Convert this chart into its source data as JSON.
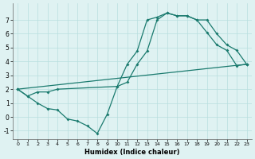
{
  "xlabel": "Humidex (Indice chaleur)",
  "bg_color": "#dff2f2",
  "line_color": "#1a7a6e",
  "grid_color": "#b8dede",
  "xlim": [
    -0.5,
    23.5
  ],
  "ylim": [
    -1.6,
    8.2
  ],
  "xticks": [
    0,
    1,
    2,
    3,
    4,
    5,
    6,
    7,
    8,
    9,
    10,
    11,
    12,
    13,
    14,
    15,
    16,
    17,
    18,
    19,
    20,
    21,
    22,
    23
  ],
  "yticks": [
    -1,
    0,
    1,
    2,
    3,
    4,
    5,
    6,
    7
  ],
  "curve1_x": [
    0,
    1,
    2,
    3,
    4,
    5,
    6,
    7,
    8,
    9,
    10,
    11,
    12,
    13,
    14,
    15,
    16,
    17,
    18,
    19,
    20,
    21,
    22,
    23
  ],
  "curve1_y": [
    2.0,
    1.5,
    1.0,
    0.6,
    0.5,
    -0.15,
    -0.3,
    -0.65,
    -1.2,
    0.2,
    2.2,
    3.8,
    4.75,
    7.0,
    7.2,
    7.5,
    7.3,
    7.3,
    7.0,
    6.1,
    5.2,
    4.8,
    3.7,
    3.8
  ],
  "curve2_x": [
    0,
    1,
    2,
    3,
    4,
    10,
    11,
    12,
    13,
    14,
    15,
    16,
    17,
    18,
    19,
    20,
    21,
    22,
    23
  ],
  "curve2_y": [
    2.0,
    1.5,
    1.8,
    1.8,
    2.0,
    2.2,
    2.5,
    3.8,
    4.75,
    7.0,
    7.5,
    7.3,
    7.3,
    7.0,
    7.0,
    6.0,
    5.2,
    4.8,
    3.8
  ],
  "curve3_x": [
    0,
    23
  ],
  "curve3_y": [
    2.0,
    3.8
  ]
}
